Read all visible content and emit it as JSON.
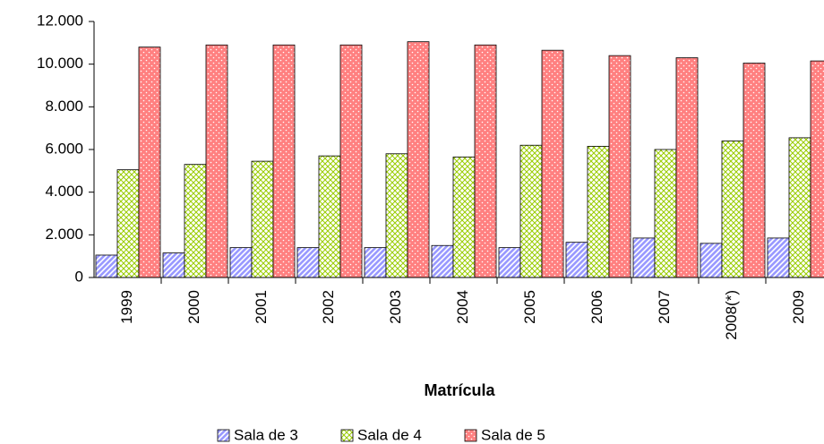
{
  "chart_data": {
    "type": "bar",
    "x_label": "Matrícula",
    "categories": [
      "1999",
      "2000",
      "2001",
      "2002",
      "2003",
      "2004",
      "2005",
      "2006",
      "2007",
      "2008(*)",
      "2009"
    ],
    "series": [
      {
        "name": "Sala de 3",
        "color": "#9999ff",
        "values": [
          1050,
          1150,
          1400,
          1400,
          1400,
          1500,
          1400,
          1650,
          1850,
          1600,
          1850
        ]
      },
      {
        "name": "Sala de 4",
        "color": "#99cc00",
        "values": [
          5050,
          5300,
          5450,
          5700,
          5800,
          5650,
          6200,
          6150,
          6000,
          6400,
          6550
        ]
      },
      {
        "name": "Sala de 5",
        "color": "#ff8080",
        "values": [
          10800,
          10900,
          10900,
          10900,
          11050,
          10900,
          10650,
          10400,
          10300,
          10050,
          10150
        ]
      }
    ],
    "ylim": [
      0,
      12000
    ],
    "yticks": [
      0,
      {
        "value": 2000,
        "label": "2.000"
      },
      {
        "value": 4000,
        "label": "4.000"
      },
      {
        "value": 6000,
        "label": "6.000"
      },
      {
        "value": 8000,
        "label": "8.000"
      },
      {
        "value": 10000,
        "label": "10.000"
      },
      {
        "value": 12000,
        "label": "12.000"
      }
    ],
    "legend": "bottom"
  }
}
